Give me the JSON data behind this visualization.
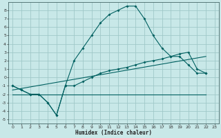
{
  "xlabel": "Humidex (Indice chaleur)",
  "background_color": "#c8e8e8",
  "grid_color": "#a0c8c8",
  "line_color": "#006060",
  "xlim": [
    -0.5,
    23.5
  ],
  "ylim": [
    -5.5,
    9.0
  ],
  "xticks": [
    0,
    1,
    2,
    3,
    4,
    5,
    6,
    7,
    8,
    9,
    10,
    11,
    12,
    13,
    14,
    15,
    16,
    17,
    18,
    19,
    20,
    21,
    22,
    23
  ],
  "yticks": [
    -5,
    -4,
    -3,
    -2,
    -1,
    0,
    1,
    2,
    3,
    4,
    5,
    6,
    7,
    8
  ],
  "line1_x": [
    0,
    1,
    2,
    3,
    4,
    5,
    6,
    7,
    8,
    9,
    10,
    11,
    12,
    13,
    14,
    15,
    16,
    17,
    18,
    19,
    20,
    21,
    22
  ],
  "line1_y": [
    -1,
    -1.5,
    -2,
    -2,
    -3,
    -4.5,
    -1,
    2,
    3.5,
    5,
    6.5,
    7.5,
    8,
    8.5,
    8.5,
    7,
    5,
    3.5,
    2.5,
    2.5,
    1.5,
    0.5,
    0.5
  ],
  "line2_x": [
    0,
    1,
    2,
    3,
    4,
    5,
    6,
    7,
    8,
    9,
    10,
    11,
    12,
    13,
    14,
    15,
    16,
    17,
    18,
    19,
    20,
    21,
    22
  ],
  "line2_y": [
    -1,
    -1.5,
    -2,
    -2,
    -3,
    -4.5,
    -1,
    -1,
    -0.5,
    0,
    0.5,
    0.8,
    1,
    1.2,
    1.5,
    1.8,
    2,
    2.2,
    2.5,
    2.8,
    3,
    1,
    0.5
  ],
  "line3_x": [
    0,
    22
  ],
  "line3_y": [
    -2,
    -2
  ],
  "line4_x": [
    0,
    22
  ],
  "line4_y": [
    -1.5,
    2.5
  ]
}
